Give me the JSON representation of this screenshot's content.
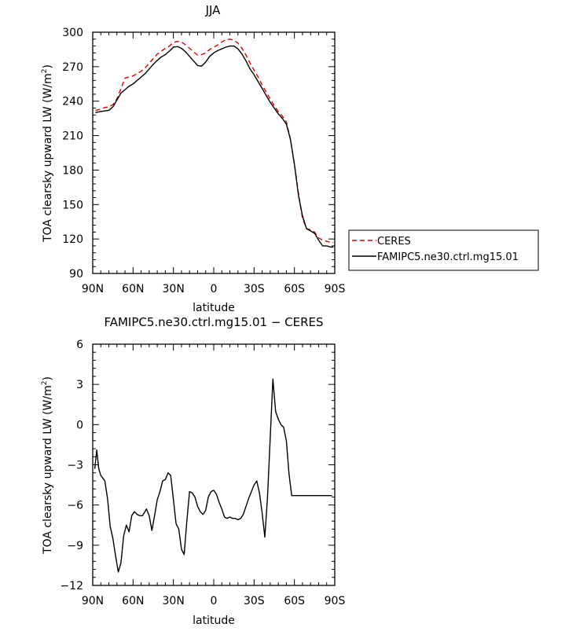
{
  "chart_data": [
    {
      "type": "line",
      "title": "JJA",
      "xlabel": "latitude",
      "ylabel_main": "TOA clearsky upward LW (W/m",
      "ylabel_sup": "2",
      "ylabel_close": ")",
      "xlim": [
        -90,
        90
      ],
      "ylim": [
        90,
        300
      ],
      "xticks": [
        -90,
        -60,
        -30,
        0,
        30,
        60,
        90
      ],
      "xtick_labels": [
        "90N",
        "60N",
        "30N",
        "0",
        "30S",
        "60S",
        "90S"
      ],
      "yticks": [
        90,
        120,
        150,
        180,
        210,
        240,
        270,
        300
      ],
      "ytick_labels": [
        "90",
        "120",
        "150",
        "180",
        "210",
        "240",
        "270",
        "300"
      ],
      "legend_position": "outside right",
      "series": [
        {
          "name": "CERES",
          "color": "#e00000",
          "dash": "dashed",
          "x": [
            -88,
            -84,
            -81,
            -78,
            -75,
            -72,
            -69,
            -66,
            -63,
            -60,
            -57,
            -54,
            -51,
            -48,
            -45,
            -42,
            -39,
            -36,
            -33,
            -30,
            -27,
            -24,
            -21,
            -18,
            -15,
            -12,
            -9,
            -6,
            -3,
            0,
            3,
            6,
            9,
            12,
            15,
            18,
            21,
            24,
            27,
            30,
            33,
            36,
            39,
            42,
            45,
            48,
            51,
            54,
            57,
            60,
            63,
            66,
            69,
            72,
            75,
            78,
            81,
            84,
            87,
            89
          ],
          "values": [
            232,
            233,
            234.5,
            235,
            237,
            242,
            251,
            260,
            261,
            262,
            264,
            266,
            269,
            273,
            277,
            281,
            283.5,
            286,
            288,
            291,
            292,
            291.5,
            289,
            286,
            283,
            280,
            280.5,
            282,
            285,
            287,
            289,
            291.5,
            293.5,
            294,
            293,
            290.5,
            286,
            280,
            273,
            267,
            261,
            254,
            248,
            242,
            236,
            231,
            227,
            222,
            207,
            185,
            160,
            138,
            129,
            128,
            126,
            121,
            119,
            118,
            117,
            117
          ]
        },
        {
          "name": "FAMIPC5.ne30.ctrl.mg15.01",
          "color": "#000000",
          "dash": "solid",
          "x": [
            -88,
            -84,
            -81,
            -78,
            -75,
            -72,
            -69,
            -66,
            -63,
            -60,
            -57,
            -54,
            -51,
            -48,
            -45,
            -42,
            -39,
            -36,
            -33,
            -30,
            -27,
            -24,
            -21,
            -18,
            -15,
            -12,
            -9,
            -6,
            -3,
            0,
            3,
            6,
            9,
            12,
            15,
            18,
            21,
            24,
            27,
            30,
            33,
            36,
            39,
            42,
            45,
            48,
            51,
            54,
            57,
            60,
            63,
            66,
            69,
            72,
            75,
            78,
            81,
            84,
            87,
            89
          ],
          "values": [
            230,
            231,
            231.5,
            232,
            235,
            241,
            247,
            250,
            253,
            255,
            258,
            261,
            264,
            268,
            272,
            275.5,
            278.5,
            280.5,
            283.5,
            287,
            287.5,
            286,
            283,
            279,
            275,
            271,
            270.5,
            274,
            279,
            282,
            284,
            285.5,
            287,
            288,
            288,
            285.5,
            281,
            275,
            268,
            263,
            257,
            251,
            245,
            239,
            234,
            229,
            225,
            220,
            207,
            185,
            158,
            140,
            129,
            127,
            125,
            119,
            114,
            114,
            113,
            113
          ]
        }
      ]
    },
    {
      "type": "line",
      "title": "FAMIPC5.ne30.ctrl.mg15.01 − CERES",
      "xlabel": "latitude",
      "ylabel_main": "TOA clearsky upward LW (W/m",
      "ylabel_sup": "2",
      "ylabel_close": ")",
      "xlim": [
        -90,
        90
      ],
      "ylim": [
        -12,
        6
      ],
      "xticks": [
        -90,
        -60,
        -30,
        0,
        30,
        60,
        90
      ],
      "xtick_labels": [
        "90N",
        "60N",
        "30N",
        "0",
        "30S",
        "60S",
        "90S"
      ],
      "yticks": [
        -12,
        -9,
        -6,
        -3,
        0,
        3,
        6
      ],
      "ytick_labels": [
        "−12",
        "−9",
        "−6",
        "−3",
        "0",
        "3",
        "6"
      ],
      "series": [
        {
          "color": "#000000",
          "dash": "solid",
          "x": [
            -88.5,
            -87,
            -85.5,
            -84,
            -81,
            -79,
            -77,
            -75,
            -73,
            -71,
            -69,
            -67,
            -65,
            -63,
            -61,
            -59,
            -57,
            -55,
            -53,
            -50,
            -48,
            -46,
            -44,
            -42,
            -40,
            -38,
            -36,
            -34,
            -32,
            -30,
            -28,
            -26,
            -24,
            -22,
            -20,
            -18,
            -16,
            -14,
            -12,
            -10,
            -8,
            -6,
            -4,
            -2,
            0,
            2,
            4,
            6,
            8,
            10,
            12,
            14,
            16,
            18,
            20,
            22,
            24,
            26,
            28,
            30,
            32,
            34,
            36,
            38,
            40,
            42,
            44,
            46,
            48,
            50,
            52,
            54,
            56,
            58,
            60,
            62,
            64,
            66,
            68,
            70,
            72,
            74,
            76,
            78,
            80,
            82,
            84,
            86,
            88
          ],
          "values": [
            -3.3,
            -1.9,
            -3.3,
            -3.8,
            -4.2,
            -5.5,
            -7.6,
            -8.5,
            -9.8,
            -11.0,
            -10.3,
            -8.3,
            -7.5,
            -8.0,
            -6.8,
            -6.5,
            -6.7,
            -6.8,
            -6.8,
            -6.3,
            -6.8,
            -7.9,
            -6.8,
            -5.6,
            -5.0,
            -4.2,
            -4.1,
            -3.6,
            -3.8,
            -5.6,
            -7.4,
            -7.8,
            -9.3,
            -9.7,
            -7.2,
            -5.0,
            -5.1,
            -5.4,
            -6.1,
            -6.5,
            -6.7,
            -6.4,
            -5.4,
            -5.0,
            -4.9,
            -5.2,
            -5.8,
            -6.3,
            -6.9,
            -7.0,
            -6.9,
            -7.0,
            -7.0,
            -7.1,
            -7.0,
            -6.7,
            -6.1,
            -5.5,
            -5.0,
            -4.5,
            -4.2,
            -5.1,
            -6.6,
            -8.4,
            -5.4,
            -1.0,
            3.4,
            1.0,
            0.4,
            0.0,
            -0.2,
            -1.2,
            -3.7,
            -5.3,
            -5.3,
            -5.3,
            -5.3,
            -5.3,
            -5.3,
            -5.3,
            -5.3,
            -5.3,
            -5.3,
            -5.3,
            -5.3,
            -5.3,
            -5.3,
            -5.3,
            -5.3
          ]
        }
      ]
    }
  ]
}
